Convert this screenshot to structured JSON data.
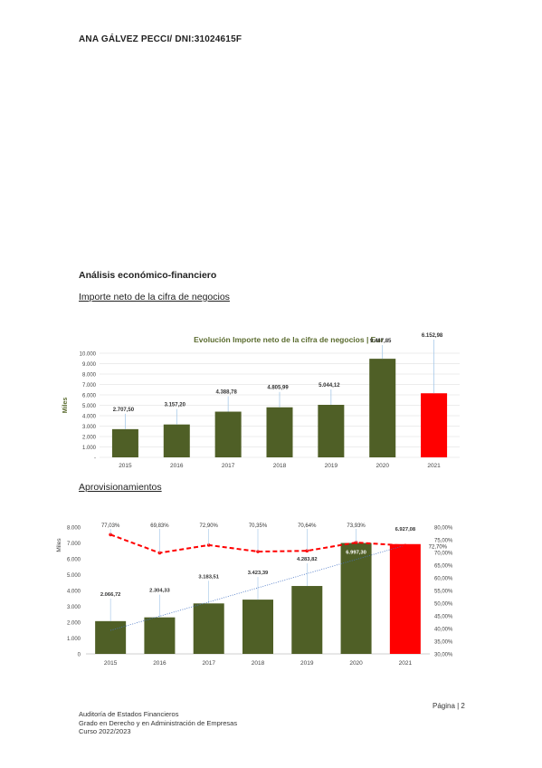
{
  "header": {
    "author": "ANA GÁLVEZ PECCI/ DNI:31024615F"
  },
  "section": {
    "title": "Análisis económico-financiero",
    "sub1": "Importe neto de la cifra de negocios",
    "sub2": "Aprovisionamientos"
  },
  "chart_data": [
    {
      "type": "bar",
      "title": "Evolución Importe neto de la cifra de negocios | Eur",
      "ylabel": "Miles",
      "ylim": [
        0,
        10000
      ],
      "yticks": [
        "-",
        "1.000",
        "2.000",
        "3.000",
        "4.000",
        "5.000",
        "6.000",
        "7.000",
        "8.000",
        "9.000",
        "10.000"
      ],
      "categories": [
        "2015",
        "2016",
        "2017",
        "2018",
        "2019",
        "2020",
        "2021"
      ],
      "values": [
        2707.5,
        3157.2,
        4388.78,
        4805.99,
        5044.12,
        9467.85,
        6152.98
      ],
      "data_labels": [
        "2.707,50",
        "3.157,20",
        "4.388,78",
        "4.805,99",
        "5.044,12",
        "9.467,85",
        "6.152,98"
      ],
      "colors": [
        "#4f5f26",
        "#4f5f26",
        "#4f5f26",
        "#4f5f26",
        "#4f5f26",
        "#4f5f26",
        "#ff0000"
      ],
      "grid": true
    },
    {
      "type": "bar",
      "ylabel": "Miles",
      "ylim": [
        0,
        8000
      ],
      "yticks": [
        "0",
        "1.000",
        "2.000",
        "3.000",
        "4.000",
        "5.000",
        "6.000",
        "7.000",
        "8.000"
      ],
      "y2lim": [
        30,
        80
      ],
      "y2ticks": [
        "30,00%",
        "35,00%",
        "40,00%",
        "45,00%",
        "50,00%",
        "55,00%",
        "60,00%",
        "65,00%",
        "70,00%",
        "75,00%",
        "80,00%"
      ],
      "categories": [
        "2015",
        "2016",
        "2017",
        "2018",
        "2019",
        "2020",
        "2021"
      ],
      "values": [
        2066.72,
        2304.33,
        3183.51,
        3423.39,
        4283.82,
        6997.3,
        6927.08
      ],
      "data_labels": [
        "2.066,72",
        "2.304,33",
        "3.183,51",
        "3.423,39",
        "4.283,82",
        "6.997,30",
        "6.927,08"
      ],
      "colors": [
        "#4f5f26",
        "#4f5f26",
        "#4f5f26",
        "#4f5f26",
        "#4f5f26",
        "#4f5f26",
        "#ff0000"
      ],
      "line_series": {
        "values": [
          77.03,
          69.83,
          72.9,
          70.35,
          70.64,
          73.93,
          72.7
        ],
        "labels": [
          "77,03%",
          "69,83%",
          "72,90%",
          "70,35%",
          "70,64%",
          "73,93%",
          "72,70%"
        ],
        "color": "#ff0000"
      },
      "trendline": true
    }
  ],
  "footer": {
    "line1": "Auditoría de Estados Financieros",
    "line2": "Grado en Derecho y en Administración de Empresas",
    "line3": "Curso 2022/2023",
    "page": "Página | 2"
  }
}
